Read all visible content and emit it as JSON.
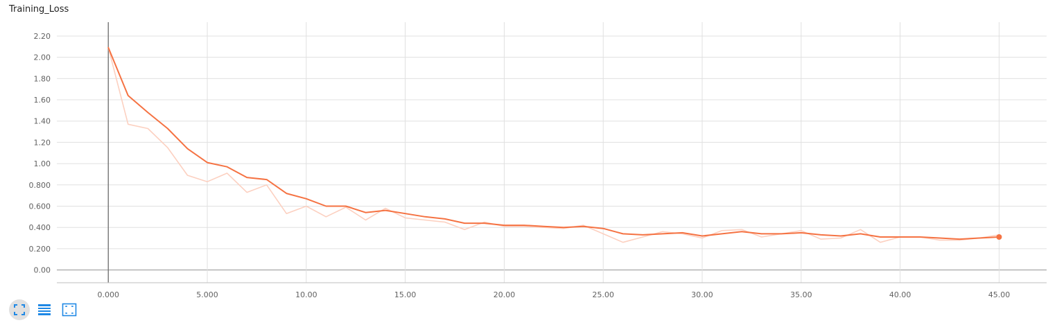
{
  "chart_data": {
    "type": "line",
    "title": "Training_Loss",
    "xlim": [
      -2.6,
      47.4
    ],
    "ylim": [
      -0.12,
      2.33
    ],
    "x_ticks": [
      "0.000",
      "5.000",
      "10.00",
      "15.00",
      "20.00",
      "25.00",
      "30.00",
      "35.00",
      "40.00",
      "45.00"
    ],
    "x_tick_values": [
      0,
      5,
      10,
      15,
      20,
      25,
      30,
      35,
      40,
      45
    ],
    "y_ticks": [
      "0.00",
      "0.200",
      "0.400",
      "0.600",
      "0.800",
      "1.00",
      "1.20",
      "1.40",
      "1.60",
      "1.80",
      "2.00",
      "2.20"
    ],
    "y_tick_values": [
      0,
      0.2,
      0.4,
      0.6,
      0.8,
      1.0,
      1.2,
      1.4,
      1.6,
      1.8,
      2.0,
      2.2
    ],
    "grid": true,
    "x": [
      0,
      1,
      2,
      3,
      4,
      5,
      6,
      7,
      8,
      9,
      10,
      11,
      12,
      13,
      14,
      15,
      16,
      17,
      18,
      19,
      20,
      21,
      22,
      23,
      24,
      25,
      26,
      27,
      28,
      29,
      30,
      31,
      32,
      33,
      34,
      35,
      36,
      37,
      38,
      39,
      40,
      41,
      42,
      43,
      44,
      45
    ],
    "series": [
      {
        "values": [
          2.09,
          1.37,
          1.33,
          1.15,
          0.89,
          0.83,
          0.91,
          0.73,
          0.8,
          0.53,
          0.6,
          0.5,
          0.59,
          0.47,
          0.58,
          0.49,
          0.47,
          0.45,
          0.38,
          0.45,
          0.41,
          0.41,
          0.4,
          0.39,
          0.42,
          0.34,
          0.26,
          0.31,
          0.36,
          0.34,
          0.3,
          0.37,
          0.38,
          0.31,
          0.34,
          0.37,
          0.29,
          0.3,
          0.38,
          0.26,
          0.31,
          0.31,
          0.28,
          0.28,
          0.3,
          0.33
        ],
        "color": "#fcd0c0"
      },
      {
        "values": [
          2.09,
          1.64,
          1.48,
          1.33,
          1.14,
          1.01,
          0.97,
          0.87,
          0.85,
          0.72,
          0.67,
          0.6,
          0.6,
          0.54,
          0.56,
          0.53,
          0.5,
          0.48,
          0.44,
          0.44,
          0.42,
          0.42,
          0.41,
          0.4,
          0.41,
          0.39,
          0.34,
          0.33,
          0.34,
          0.35,
          0.32,
          0.34,
          0.36,
          0.34,
          0.34,
          0.35,
          0.33,
          0.32,
          0.34,
          0.31,
          0.31,
          0.31,
          0.3,
          0.29,
          0.3,
          0.31
        ],
        "color": "#f57242"
      }
    ]
  },
  "toolbar": {
    "buttons": [
      {
        "icon": "fit-to-screen-icon",
        "active": true
      },
      {
        "icon": "list-lines-icon",
        "active": false
      },
      {
        "icon": "data-range-icon",
        "active": false
      }
    ],
    "accent": "#1e88e5"
  }
}
